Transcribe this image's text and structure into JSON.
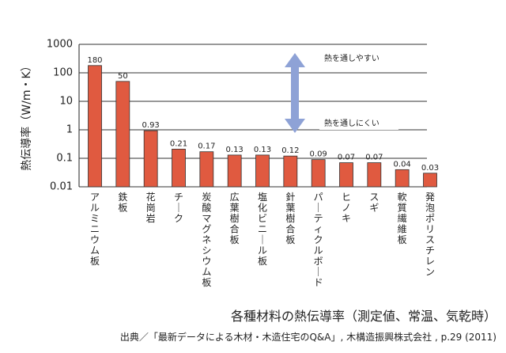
{
  "chart_data": {
    "type": "bar",
    "scale": "log",
    "ylabel": "熱伝導率（W/m・K）",
    "ylim": [
      0.01,
      1000
    ],
    "yticks": [
      "1000",
      "100",
      "10",
      "1",
      "0.1",
      "0.01"
    ],
    "grid": "horizontal",
    "bar_color": "#e05a40",
    "categories": [
      "アルミニウム板",
      "鉄板",
      "花崗岩",
      "チーク",
      "炭酸マグネシウム板",
      "広葉樹合板",
      "塩化ビニール板",
      "針葉樹合板",
      "パーティクルボード",
      "ヒノキ",
      "スギ",
      "軟質繊維板",
      "発泡ポリスチレン"
    ],
    "values": [
      180,
      50,
      0.93,
      0.21,
      0.17,
      0.13,
      0.13,
      0.12,
      0.09,
      0.07,
      0.07,
      0.04,
      0.03
    ],
    "value_labels": [
      "180",
      "50",
      "0.93",
      "0.21",
      "0.17",
      "0.13",
      "0.13",
      "0.12",
      "0.09",
      "0.07",
      "0.07",
      "0.04",
      "0.03"
    ],
    "annotations": {
      "arrow_color": "#8ea2d6",
      "top_label": "熱を通しやすい",
      "bottom_label": "熱を通しにくい"
    }
  },
  "caption": "各種材料の熱伝導率（測定値、常温、気乾時）",
  "source": "出典／「最新データによる木材・木造住宅のQ&A」, 木構造振興株式会社 , p.29 (2011)"
}
